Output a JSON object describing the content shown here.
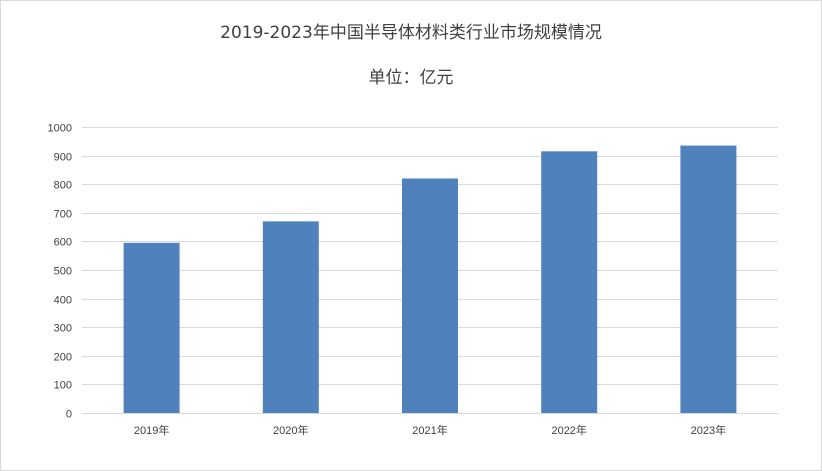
{
  "chart_data": {
    "type": "bar",
    "title": "2019-2023年中国半导体材料类行业市场规模情况",
    "subtitle": "单位：亿元",
    "categories": [
      "2019年",
      "2020年",
      "2021年",
      "2022年",
      "2023年"
    ],
    "values": [
      595,
      670,
      820,
      915,
      935
    ],
    "ylim": [
      0,
      1000
    ],
    "yticks": [
      0,
      100,
      200,
      300,
      400,
      500,
      600,
      700,
      800,
      900,
      1000
    ],
    "grid": true,
    "bar_color": "#4f81bd",
    "grid_color": "#d9d9d9"
  }
}
